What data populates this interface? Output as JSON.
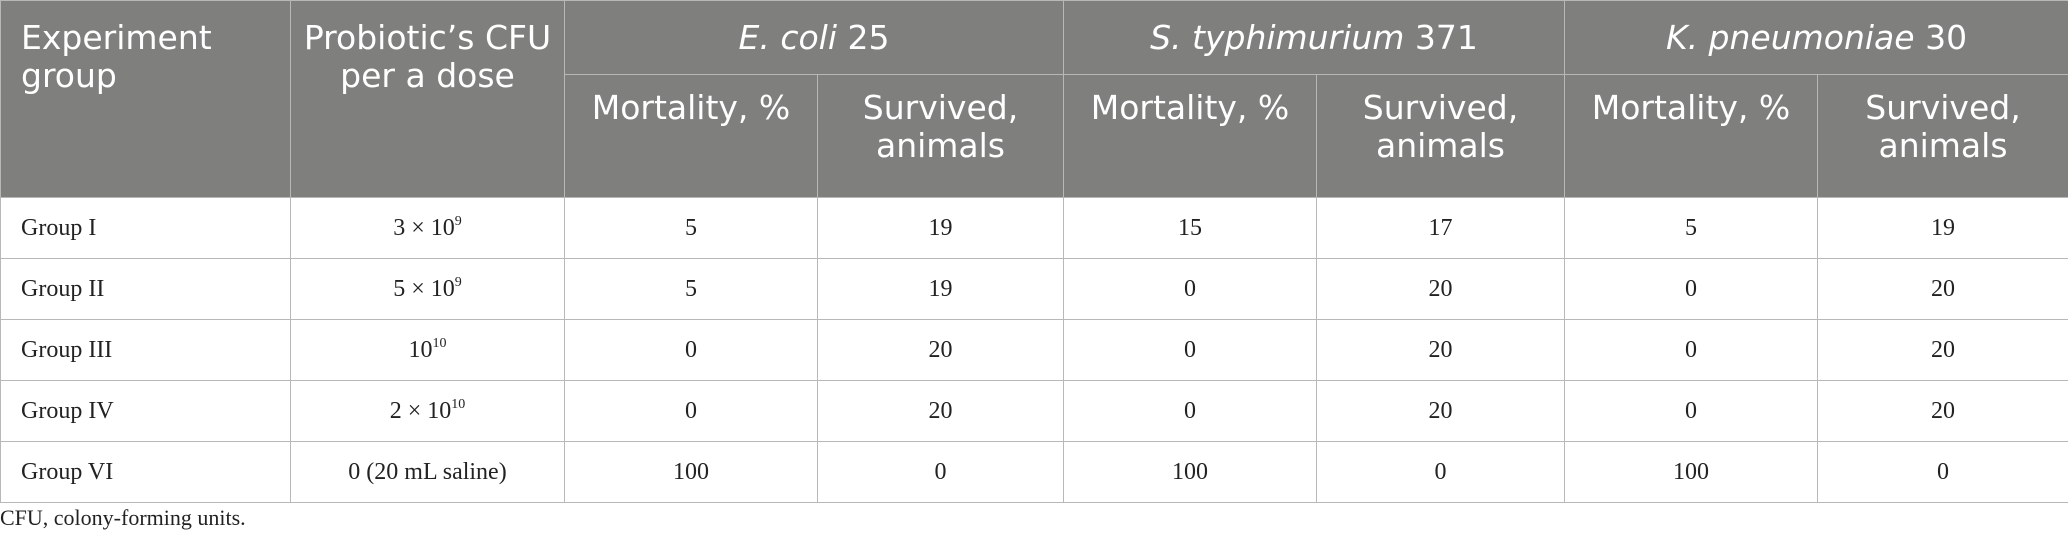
{
  "header": {
    "group_label": "Experiment group",
    "cfu_label": "Probiotic’s CFU per a dose",
    "strains": [
      {
        "name": "E. coli",
        "suffix": " 25"
      },
      {
        "name": "S. typhimurium",
        "suffix": " 371"
      },
      {
        "name": "K. pneumoniae",
        "suffix": " 30"
      }
    ],
    "sub_mortality": "Mortality, %",
    "sub_survived": "Survived, animals"
  },
  "rows": [
    {
      "group": "Group I",
      "cfu_base": "3 × 10",
      "cfu_exp": "9",
      "values": [
        "5",
        "19",
        "15",
        "17",
        "5",
        "19"
      ]
    },
    {
      "group": "Group II",
      "cfu_base": "5 × 10",
      "cfu_exp": "9",
      "values": [
        "5",
        "19",
        "0",
        "20",
        "0",
        "20"
      ]
    },
    {
      "group": "Group III",
      "cfu_base": "10",
      "cfu_exp": "10",
      "values": [
        "0",
        "20",
        "0",
        "20",
        "0",
        "20"
      ]
    },
    {
      "group": "Group IV",
      "cfu_base": "2 × 10",
      "cfu_exp": "10",
      "values": [
        "0",
        "20",
        "0",
        "20",
        "0",
        "20"
      ]
    },
    {
      "group": "Group VI",
      "cfu_base": "0 (20 mL saline)",
      "cfu_exp": "",
      "values": [
        "100",
        "0",
        "100",
        "0",
        "100",
        "0"
      ]
    }
  ],
  "footnote": "CFU, colony-forming units."
}
